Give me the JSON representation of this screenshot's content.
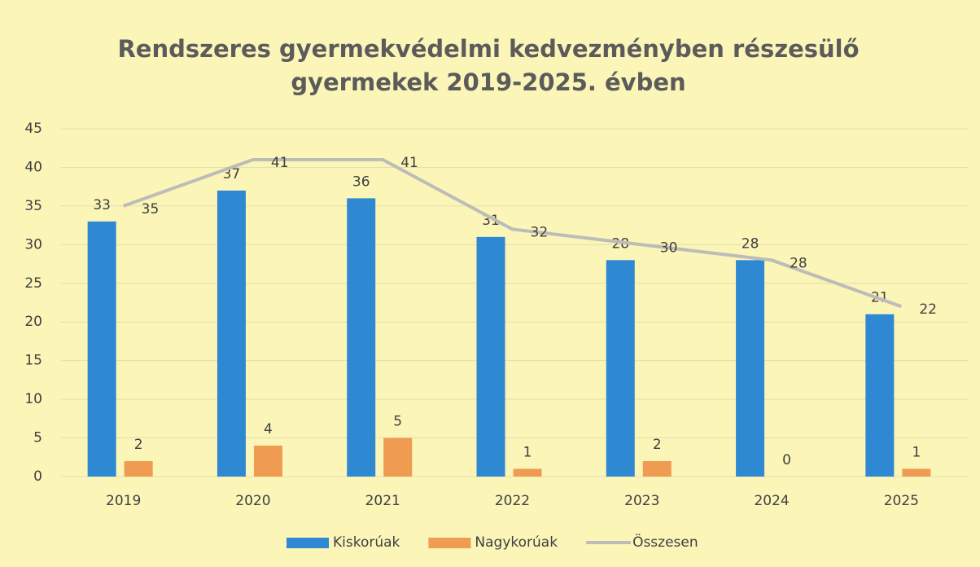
{
  "chart_data": {
    "type": "bar",
    "title": [
      "Rendszeres gyermekvédelmi kedvezményben részesülő",
      "gyermekek 2019-2025. évben"
    ],
    "categories": [
      "2019",
      "2020",
      "2021",
      "2022",
      "2023",
      "2024",
      "2025"
    ],
    "series": [
      {
        "name": "Kiskorúak",
        "color": "#2f88d2",
        "values": [
          33,
          37,
          36,
          31,
          28,
          28,
          21
        ]
      },
      {
        "name": "Nagykorúak",
        "color": "#ef9b52",
        "values": [
          2,
          4,
          5,
          1,
          2,
          0,
          1
        ]
      },
      {
        "name": "Összesen",
        "color": "#bcbcb8",
        "type": "line",
        "values": [
          35,
          41,
          41,
          32,
          30,
          28,
          22
        ]
      }
    ],
    "ylim": [
      0,
      45
    ],
    "yticks": [
      0,
      5,
      10,
      15,
      20,
      25,
      30,
      35,
      40,
      45
    ],
    "grid": true,
    "legend": "bottom"
  }
}
